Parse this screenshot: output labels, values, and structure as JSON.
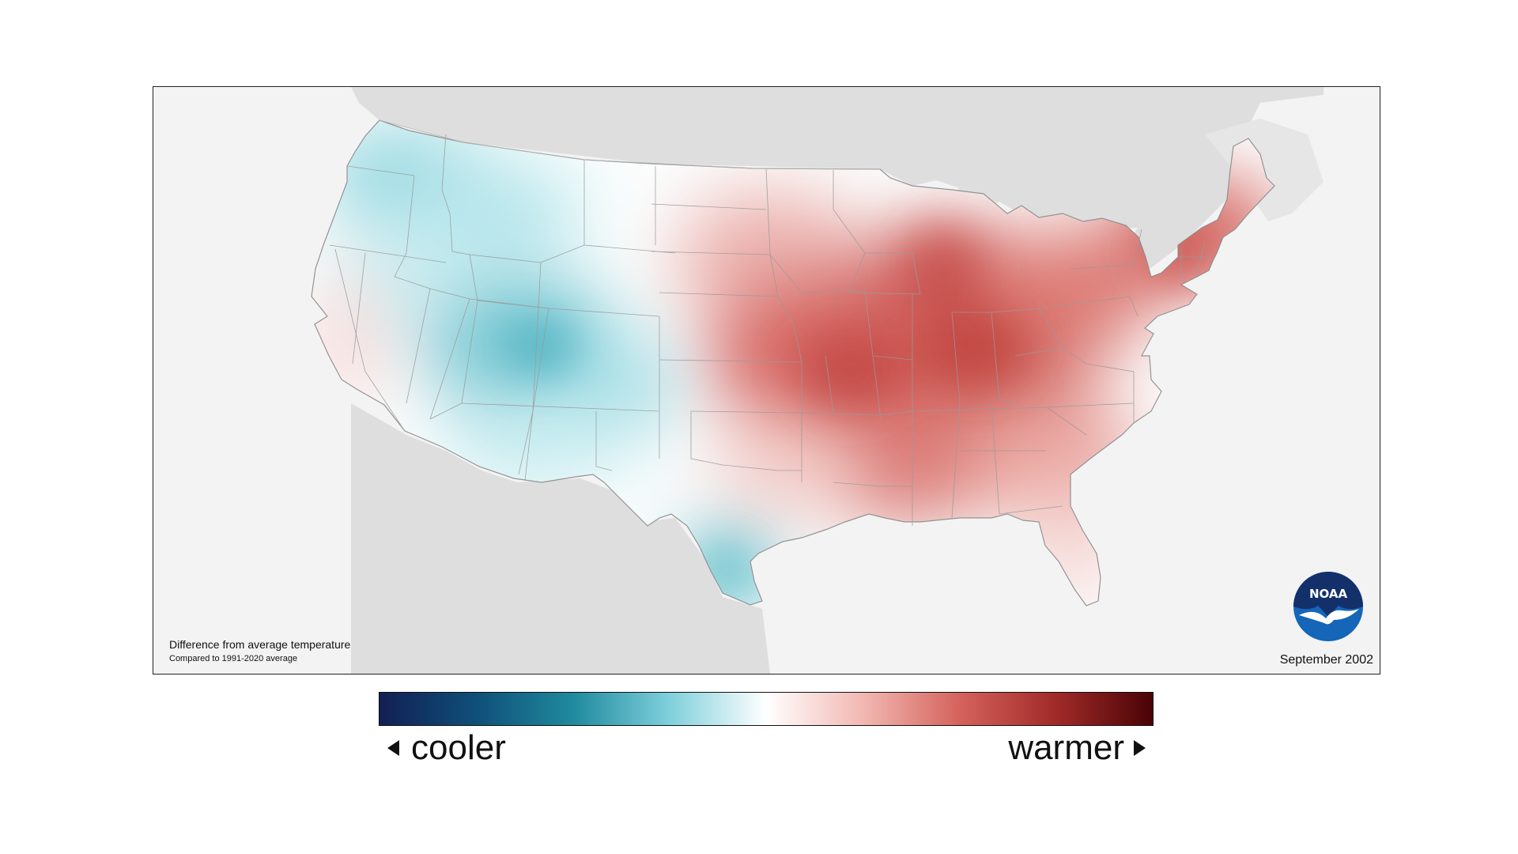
{
  "map": {
    "caption_title": "Difference from average temperature",
    "caption_subtitle": "Compared to 1991-2020 average",
    "period": "September 2002",
    "logo_text": "NOAA",
    "pattern_summary": {
      "cooler_regions": [
        "Pacific Northwest",
        "Idaho",
        "Montana",
        "Nevada",
        "Utah",
        "Colorado",
        "Arizona",
        "New Mexico",
        "South Texas"
      ],
      "warmer_regions": [
        "Upper Midwest",
        "Great Lakes",
        "Ohio Valley",
        "Mississippi Valley",
        "Southeast",
        "Mid-Atlantic",
        "Northeast"
      ]
    }
  },
  "legend": {
    "cooler_label": "cooler",
    "warmer_label": "warmer",
    "gradient_colors": [
      "#121f54",
      "#0f4f79",
      "#1f8a9e",
      "#7fd0dc",
      "#ffffff",
      "#f2b8b2",
      "#d5625c",
      "#a12a28",
      "#4a0306"
    ]
  },
  "colors": {
    "cool_anomaly": "#3fb4c4",
    "warm_anomaly": "#cf4a47",
    "land_outside": "#dcdcdc",
    "background": "#f3f3f3",
    "noaa_blue": "#1565b8",
    "noaa_navy": "#13306b"
  }
}
